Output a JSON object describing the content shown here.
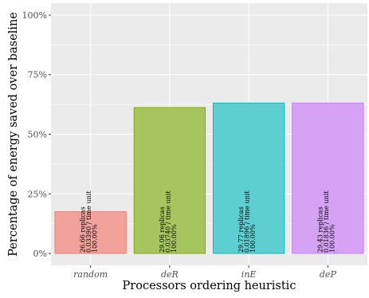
{
  "chart_data": {
    "type": "bar",
    "title": "",
    "xlabel": "Processors ordering heuristic",
    "ylabel": "Percentage of energy saved over baseline",
    "categories": [
      "random",
      "deR",
      "inE",
      "deP"
    ],
    "values": [
      17.5,
      61.2,
      63.1,
      63.1
    ],
    "bar_labels": [
      [
        "26.66 replicas",
        "0.03390 / time unit",
        "100.00%"
      ],
      [
        "29.06 replicas",
        "0.03740 / time unit",
        "100.00%"
      ],
      [
        "29.77 replicas",
        "0.01896 / time unit",
        "100.00%"
      ],
      [
        "29.43 replicas",
        "0.01836 / time unit",
        "100.00%"
      ]
    ],
    "ylim": [
      -5,
      105
    ],
    "yticks": [
      0,
      25,
      50,
      75,
      100
    ],
    "ytick_labels": [
      "0%",
      "25%",
      "50%",
      "75%",
      "100%"
    ],
    "grid": true,
    "legend": "none",
    "colors": {
      "fills": [
        "#F0A29B",
        "#A7C55F",
        "#5ECFD1",
        "#D5A2F4"
      ],
      "strokes": [
        "#F8766D",
        "#7CAE00",
        "#00BFC4",
        "#C77CFF"
      ],
      "panel": "#EBEBEB",
      "gridline": "#FFFFFF"
    }
  }
}
